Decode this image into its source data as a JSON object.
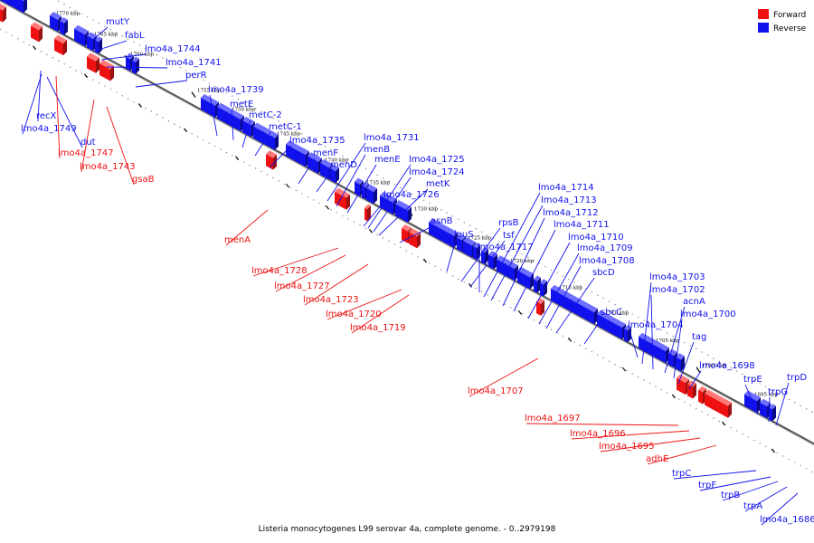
{
  "caption": "Listeria monocytogenes L99 serovar 4a, complete genome. - 0..2979198",
  "legend": [
    {
      "label": "Forward",
      "color": "#ee1111"
    },
    {
      "label": "Reverse",
      "color": "#1111ee"
    }
  ],
  "colors": {
    "forward": "#ee1111",
    "reverse": "#1111ee",
    "axis": "#888888"
  },
  "ticks": [
    "1770 kbp",
    "1765 kbp",
    "1760 kbp",
    "1755 kbp",
    "1750 kbp",
    "1745 kbp",
    "1740 kbp",
    "1735 kbp",
    "1730 kbp",
    "1725 kbp",
    "1720 kbp",
    "1715 kbp",
    "1710 kbp",
    "1705 kbp",
    "1700 kbp",
    "1695 kbp"
  ],
  "genes": [
    {
      "name": "mutY",
      "strand": "reverse"
    },
    {
      "name": "fabL",
      "strand": "reverse"
    },
    {
      "name": "lmo4a_1744",
      "strand": "reverse"
    },
    {
      "name": "lmo4a_1741",
      "strand": "reverse"
    },
    {
      "name": "perR",
      "strand": "reverse"
    },
    {
      "name": "lmo4a_1739",
      "strand": "reverse"
    },
    {
      "name": "metE",
      "strand": "reverse"
    },
    {
      "name": "metC-2",
      "strand": "reverse"
    },
    {
      "name": "metC-1",
      "strand": "reverse"
    },
    {
      "name": "lmo4a_1735",
      "strand": "reverse"
    },
    {
      "name": "menF",
      "strand": "reverse"
    },
    {
      "name": "menD",
      "strand": "reverse"
    },
    {
      "name": "lmo4a_1731",
      "strand": "reverse"
    },
    {
      "name": "menB",
      "strand": "reverse"
    },
    {
      "name": "menE",
      "strand": "reverse"
    },
    {
      "name": "lmo4a_1725",
      "strand": "reverse"
    },
    {
      "name": "lmo4a_1724",
      "strand": "reverse"
    },
    {
      "name": "metK",
      "strand": "reverse"
    },
    {
      "name": "lmo4a_1726",
      "strand": "reverse"
    },
    {
      "name": "asnB",
      "strand": "reverse"
    },
    {
      "name": "leuS",
      "strand": "reverse"
    },
    {
      "name": "rpsB",
      "strand": "reverse"
    },
    {
      "name": "tsf",
      "strand": "reverse"
    },
    {
      "name": "lmo4a_1717",
      "strand": "reverse"
    },
    {
      "name": "lmo4a_1714",
      "strand": "reverse"
    },
    {
      "name": "lmo4a_1713",
      "strand": "reverse"
    },
    {
      "name": "lmo4a_1712",
      "strand": "reverse"
    },
    {
      "name": "lmo4a_1711",
      "strand": "reverse"
    },
    {
      "name": "lmo4a_1710",
      "strand": "reverse"
    },
    {
      "name": "lmo4a_1709",
      "strand": "reverse"
    },
    {
      "name": "lmo4a_1708",
      "strand": "reverse"
    },
    {
      "name": "sbcD",
      "strand": "reverse"
    },
    {
      "name": "sbcC",
      "strand": "reverse"
    },
    {
      "name": "lmo4a_1704",
      "strand": "reverse"
    },
    {
      "name": "lmo4a_1703",
      "strand": "reverse"
    },
    {
      "name": "lmo4a_1702",
      "strand": "reverse"
    },
    {
      "name": "acnA",
      "strand": "reverse"
    },
    {
      "name": "lmo4a_1700",
      "strand": "reverse"
    },
    {
      "name": "tag",
      "strand": "reverse"
    },
    {
      "name": "lmo4a_1698",
      "strand": "reverse"
    },
    {
      "name": "trpE",
      "strand": "reverse"
    },
    {
      "name": "trpG",
      "strand": "reverse"
    },
    {
      "name": "trpD",
      "strand": "reverse"
    },
    {
      "name": "recX",
      "strand": "reverse"
    },
    {
      "name": "lmo4a_1749",
      "strand": "reverse"
    },
    {
      "name": "dut",
      "strand": "reverse"
    },
    {
      "name": "trpC",
      "strand": "reverse"
    },
    {
      "name": "trpF",
      "strand": "reverse"
    },
    {
      "name": "trpB",
      "strand": "reverse"
    },
    {
      "name": "trpA",
      "strand": "reverse"
    },
    {
      "name": "lmo4a_1686",
      "strand": "reverse"
    },
    {
      "name": "lmo4a_1747",
      "strand": "forward"
    },
    {
      "name": "lmo4a_1743",
      "strand": "forward"
    },
    {
      "name": "gsaB",
      "strand": "forward"
    },
    {
      "name": "menA",
      "strand": "forward"
    },
    {
      "name": "lmo4a_1728",
      "strand": "forward"
    },
    {
      "name": "lmo4a_1727",
      "strand": "forward"
    },
    {
      "name": "lmo4a_1723",
      "strand": "forward"
    },
    {
      "name": "lmo4a_1720",
      "strand": "forward"
    },
    {
      "name": "lmo4a_1719",
      "strand": "forward"
    },
    {
      "name": "lmo4a_1707",
      "strand": "forward"
    },
    {
      "name": "lmo4a_1697",
      "strand": "forward"
    },
    {
      "name": "lmo4a_1696",
      "strand": "forward"
    },
    {
      "name": "lmo4a_1695",
      "strand": "forward"
    },
    {
      "name": "adhE",
      "strand": "forward"
    }
  ]
}
